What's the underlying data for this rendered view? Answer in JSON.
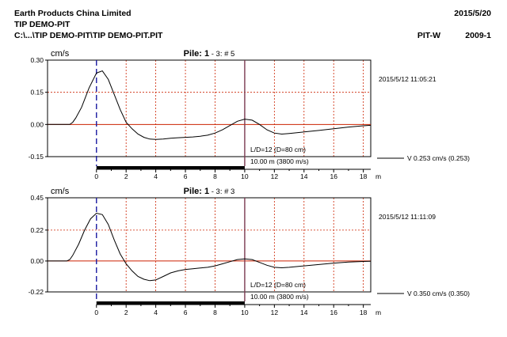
{
  "header": {
    "company": "Earth Products China Limited",
    "date": "2015/5/20",
    "project": "TIP DEMO-PIT",
    "path": "C:\\...\\TIP DEMO-PIT\\TIP DEMO-PIT.PIT",
    "software": "PIT-W",
    "version": "2009-1"
  },
  "colors": {
    "signal": "#000000",
    "zero_line": "#cc2200",
    "grid": "#cc2200",
    "start_marker": "#1a1aa0",
    "toe_marker": "#7a3a50"
  },
  "chart_data": [
    {
      "type": "line",
      "title_prefix": "Pile: ",
      "title_pile": "1",
      "title_suffix": " - 3: # 5",
      "ylabel": "cm/s",
      "xlabel": "m",
      "timestamp": "2015/5/12 11:05:21",
      "x_ticks": [
        0,
        2,
        4,
        6,
        8,
        10,
        12,
        14,
        16,
        18
      ],
      "y_ticks": [
        0.3,
        0.15,
        0.0,
        -0.15
      ],
      "y_tick_labels": [
        "0.30",
        "0.15",
        "0.00",
        "-0.15"
      ],
      "xlim": [
        -3.3,
        18.5
      ],
      "ylim": [
        -0.15,
        0.3
      ],
      "start_marker": 0,
      "toe_marker": 10,
      "ld_label": "L/D=12 (D=80 cm)",
      "length_label": "10.00 m (3800 m/s)",
      "velocity_label": "V   0.253 cm/s  (0.253)",
      "series": [
        {
          "x": [
            -3.3,
            -1.8,
            -1.6,
            -1.4,
            -1.0,
            -0.5,
            0.0,
            0.4,
            0.8,
            1.2,
            1.6,
            2.0,
            2.4,
            2.8,
            3.2,
            3.6,
            4.0,
            4.5,
            5.0,
            5.5,
            6.0,
            6.5,
            7.0,
            7.5,
            8.0,
            8.5,
            9.0,
            9.5,
            10.0,
            10.5,
            11.0,
            11.5,
            12.0,
            12.5,
            13.0,
            14.0,
            15.0,
            16.0,
            17.0,
            18.0,
            18.5
          ],
          "y": [
            0.0,
            0.0,
            0.01,
            0.03,
            0.08,
            0.17,
            0.24,
            0.25,
            0.21,
            0.14,
            0.07,
            0.01,
            -0.02,
            -0.045,
            -0.06,
            -0.068,
            -0.07,
            -0.068,
            -0.064,
            -0.062,
            -0.06,
            -0.058,
            -0.055,
            -0.05,
            -0.04,
            -0.025,
            -0.005,
            0.015,
            0.025,
            0.02,
            0.0,
            -0.025,
            -0.04,
            -0.045,
            -0.042,
            -0.035,
            -0.028,
            -0.02,
            -0.012,
            -0.006,
            -0.004
          ]
        }
      ]
    },
    {
      "type": "line",
      "title_prefix": "Pile: ",
      "title_pile": "1",
      "title_suffix": " - 3: # 3",
      "ylabel": "cm/s",
      "xlabel": "m",
      "timestamp": "2015/5/12 11:11:09",
      "x_ticks": [
        0,
        2,
        4,
        6,
        8,
        10,
        12,
        14,
        16,
        18
      ],
      "y_ticks": [
        0.45,
        0.22,
        0.0,
        -0.22
      ],
      "y_tick_labels": [
        "0.45",
        "0.22",
        "0.00",
        "-0.22"
      ],
      "xlim": [
        -3.3,
        18.5
      ],
      "ylim": [
        -0.22,
        0.45
      ],
      "start_marker": 0,
      "toe_marker": 10,
      "ld_label": "L/D=12 (D=80 cm)",
      "length_label": "10.00 m (3800 m/s)",
      "velocity_label": "V   0.350 cm/s  (0.350)",
      "series": [
        {
          "x": [
            -3.3,
            -2.0,
            -1.8,
            -1.6,
            -1.2,
            -0.8,
            -0.4,
            0.0,
            0.4,
            0.8,
            1.2,
            1.6,
            2.0,
            2.4,
            2.8,
            3.2,
            3.6,
            4.0,
            4.5,
            5.0,
            5.5,
            6.0,
            6.5,
            7.0,
            7.5,
            8.0,
            8.5,
            9.0,
            9.5,
            10.0,
            10.5,
            11.0,
            11.5,
            12.0,
            12.5,
            13.0,
            14.0,
            15.0,
            16.0,
            17.0,
            18.0,
            18.5
          ],
          "y": [
            0.0,
            0.0,
            0.01,
            0.04,
            0.12,
            0.22,
            0.3,
            0.34,
            0.33,
            0.26,
            0.15,
            0.05,
            -0.02,
            -0.07,
            -0.11,
            -0.13,
            -0.14,
            -0.135,
            -0.11,
            -0.085,
            -0.07,
            -0.06,
            -0.055,
            -0.05,
            -0.045,
            -0.035,
            -0.02,
            -0.005,
            0.01,
            0.015,
            0.01,
            -0.01,
            -0.03,
            -0.045,
            -0.048,
            -0.045,
            -0.035,
            -0.025,
            -0.015,
            -0.008,
            -0.003,
            -0.002
          ]
        }
      ]
    }
  ]
}
